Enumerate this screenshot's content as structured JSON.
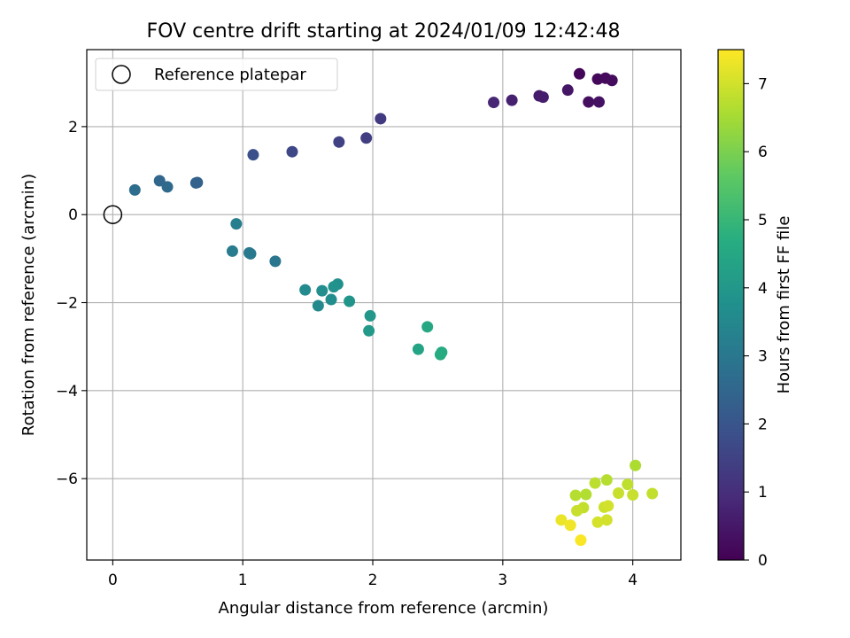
{
  "chart_data": {
    "type": "scatter",
    "title": "FOV centre drift starting at 2024/01/09 12:42:48",
    "xlabel": "Angular distance from reference (arcmin)",
    "ylabel": "Rotation from reference (arcmin)",
    "xlim": [
      -0.2,
      4.37
    ],
    "ylim": [
      -7.85,
      3.75
    ],
    "xticks": [
      0,
      1,
      2,
      3,
      4
    ],
    "yticks": [
      -6,
      -4,
      -2,
      0,
      2
    ],
    "grid": true,
    "legend": {
      "placement": "top-left",
      "entries": [
        "Reference platepar"
      ]
    },
    "reference_point": {
      "x": 0,
      "y": 0
    },
    "colormap": "viridis",
    "colorbar": {
      "label": "Hours from first FF file",
      "min": 0,
      "max": 7.5,
      "ticks": [
        0,
        1,
        2,
        3,
        4,
        5,
        6,
        7
      ]
    },
    "points": [
      {
        "x": 3.59,
        "y": 3.2,
        "t": 0.1
      },
      {
        "x": 3.73,
        "y": 3.08,
        "t": 0.15
      },
      {
        "x": 3.79,
        "y": 3.1,
        "t": 0.2
      },
      {
        "x": 3.84,
        "y": 3.05,
        "t": 0.25
      },
      {
        "x": 3.66,
        "y": 2.56,
        "t": 0.3
      },
      {
        "x": 3.74,
        "y": 2.56,
        "t": 0.35
      },
      {
        "x": 3.5,
        "y": 2.83,
        "t": 0.45
      },
      {
        "x": 3.28,
        "y": 2.7,
        "t": 0.55
      },
      {
        "x": 3.31,
        "y": 2.67,
        "t": 0.6
      },
      {
        "x": 3.07,
        "y": 2.6,
        "t": 0.7
      },
      {
        "x": 2.93,
        "y": 2.55,
        "t": 0.8
      },
      {
        "x": 2.06,
        "y": 2.18,
        "t": 1.3
      },
      {
        "x": 1.95,
        "y": 1.74,
        "t": 1.4
      },
      {
        "x": 1.74,
        "y": 1.65,
        "t": 1.5
      },
      {
        "x": 1.38,
        "y": 1.43,
        "t": 1.65
      },
      {
        "x": 1.08,
        "y": 1.36,
        "t": 1.85
      },
      {
        "x": 0.65,
        "y": 0.73,
        "t": 2.3
      },
      {
        "x": 0.64,
        "y": 0.72,
        "t": 2.4
      },
      {
        "x": 0.36,
        "y": 0.77,
        "t": 2.5
      },
      {
        "x": 0.42,
        "y": 0.63,
        "t": 2.6
      },
      {
        "x": 0.17,
        "y": 0.56,
        "t": 2.7
      },
      {
        "x": 0.95,
        "y": -0.21,
        "t": 3.2
      },
      {
        "x": 0.92,
        "y": -0.83,
        "t": 3.1
      },
      {
        "x": 1.05,
        "y": -0.87,
        "t": 3.0
      },
      {
        "x": 1.06,
        "y": -0.89,
        "t": 3.05
      },
      {
        "x": 1.25,
        "y": -1.06,
        "t": 2.95
      },
      {
        "x": 1.48,
        "y": -1.71,
        "t": 3.6
      },
      {
        "x": 1.61,
        "y": -1.73,
        "t": 3.7
      },
      {
        "x": 1.73,
        "y": -1.58,
        "t": 3.75
      },
      {
        "x": 1.7,
        "y": -1.64,
        "t": 3.8
      },
      {
        "x": 1.68,
        "y": -1.93,
        "t": 3.65
      },
      {
        "x": 1.58,
        "y": -2.07,
        "t": 3.55
      },
      {
        "x": 1.82,
        "y": -1.97,
        "t": 3.9
      },
      {
        "x": 1.98,
        "y": -2.3,
        "t": 4.0
      },
      {
        "x": 1.97,
        "y": -2.64,
        "t": 4.05
      },
      {
        "x": 2.42,
        "y": -2.55,
        "t": 4.5
      },
      {
        "x": 2.35,
        "y": -3.06,
        "t": 4.4
      },
      {
        "x": 2.53,
        "y": -3.13,
        "t": 4.6
      },
      {
        "x": 2.52,
        "y": -3.18,
        "t": 4.65
      },
      {
        "x": 4.02,
        "y": -5.7,
        "t": 6.6
      },
      {
        "x": 3.8,
        "y": -6.03,
        "t": 6.7
      },
      {
        "x": 3.71,
        "y": -6.1,
        "t": 6.75
      },
      {
        "x": 3.96,
        "y": -6.13,
        "t": 6.8
      },
      {
        "x": 4.15,
        "y": -6.34,
        "t": 6.85
      },
      {
        "x": 3.89,
        "y": -6.33,
        "t": 6.9
      },
      {
        "x": 4.0,
        "y": -6.37,
        "t": 6.9
      },
      {
        "x": 3.56,
        "y": -6.38,
        "t": 6.7
      },
      {
        "x": 3.64,
        "y": -6.36,
        "t": 6.65
      },
      {
        "x": 3.62,
        "y": -6.66,
        "t": 6.85
      },
      {
        "x": 3.57,
        "y": -6.73,
        "t": 6.9
      },
      {
        "x": 3.78,
        "y": -6.65,
        "t": 6.95
      },
      {
        "x": 3.81,
        "y": -6.62,
        "t": 7.0
      },
      {
        "x": 3.73,
        "y": -6.99,
        "t": 7.05
      },
      {
        "x": 3.8,
        "y": -6.94,
        "t": 7.0
      },
      {
        "x": 3.45,
        "y": -6.94,
        "t": 7.3
      },
      {
        "x": 3.52,
        "y": -7.06,
        "t": 7.35
      },
      {
        "x": 3.6,
        "y": -7.4,
        "t": 7.45
      }
    ]
  }
}
